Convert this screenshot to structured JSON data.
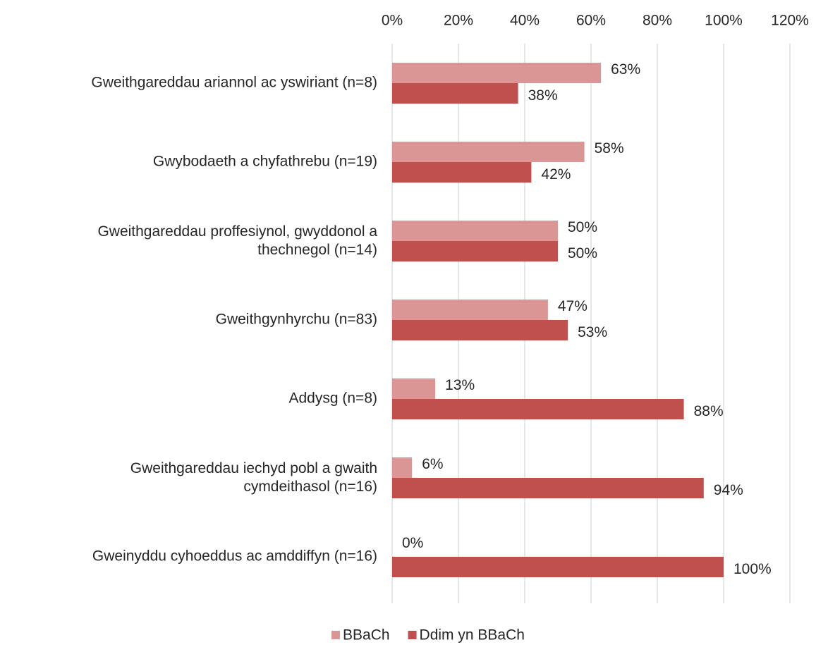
{
  "chart_data": {
    "type": "hbar",
    "categories": [
      "Gweithgareddau ariannol ac yswiriant (n=8)",
      "Gwybodaeth a chyfathrebu (n=19)",
      "Gweithgareddau proffesiynol, gwyddonol a\nthechnegol (n=14)",
      "Gweithgynhyrchu (n=83)",
      "Addysg (n=8)",
      "Gweithgareddau iechyd pobl a gwaith\ncymdeithasol (n=16)",
      "Gweinyddu cyhoeddus ac amddiffyn (n=16)"
    ],
    "series": [
      {
        "name": "BBaCh",
        "color": "#d99694",
        "values": [
          63,
          58,
          50,
          47,
          13,
          6,
          0
        ],
        "value_labels": [
          "63%",
          "58%",
          "50%",
          "47%",
          "13%",
          "6%",
          "0%"
        ]
      },
      {
        "name": "Ddim yn BBaCh",
        "color": "#c0504d",
        "values": [
          38,
          42,
          50,
          53,
          88,
          94,
          100
        ],
        "value_labels": [
          "38%",
          "42%",
          "50%",
          "53%",
          "88%",
          "94%",
          "100%"
        ]
      }
    ],
    "xlim": [
      0,
      120
    ],
    "xticks": [
      {
        "value": 0,
        "label": "0%"
      },
      {
        "value": 20,
        "label": "20%"
      },
      {
        "value": 40,
        "label": "40%"
      },
      {
        "value": 60,
        "label": "60%"
      },
      {
        "value": 80,
        "label": "80%"
      },
      {
        "value": 100,
        "label": "100%"
      },
      {
        "value": 120,
        "label": "120%"
      }
    ],
    "grid": true,
    "legend": "bottom"
  }
}
